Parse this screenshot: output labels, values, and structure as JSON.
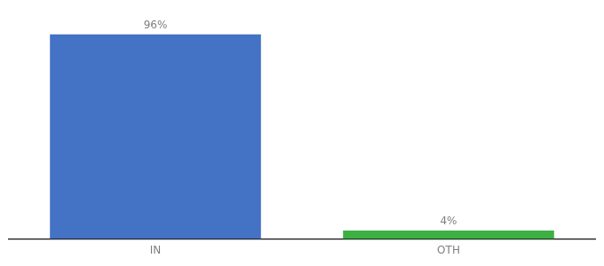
{
  "chart_data": {
    "type": "bar",
    "categories": [
      "IN",
      "OTH"
    ],
    "values": [
      96,
      4
    ],
    "value_labels": [
      "96%",
      "4%"
    ],
    "colors": [
      "#4472c4",
      "#3cb043"
    ],
    "ylim": [
      0,
      108
    ],
    "grid": false,
    "data_labels": true,
    "tick_labels": "x"
  }
}
